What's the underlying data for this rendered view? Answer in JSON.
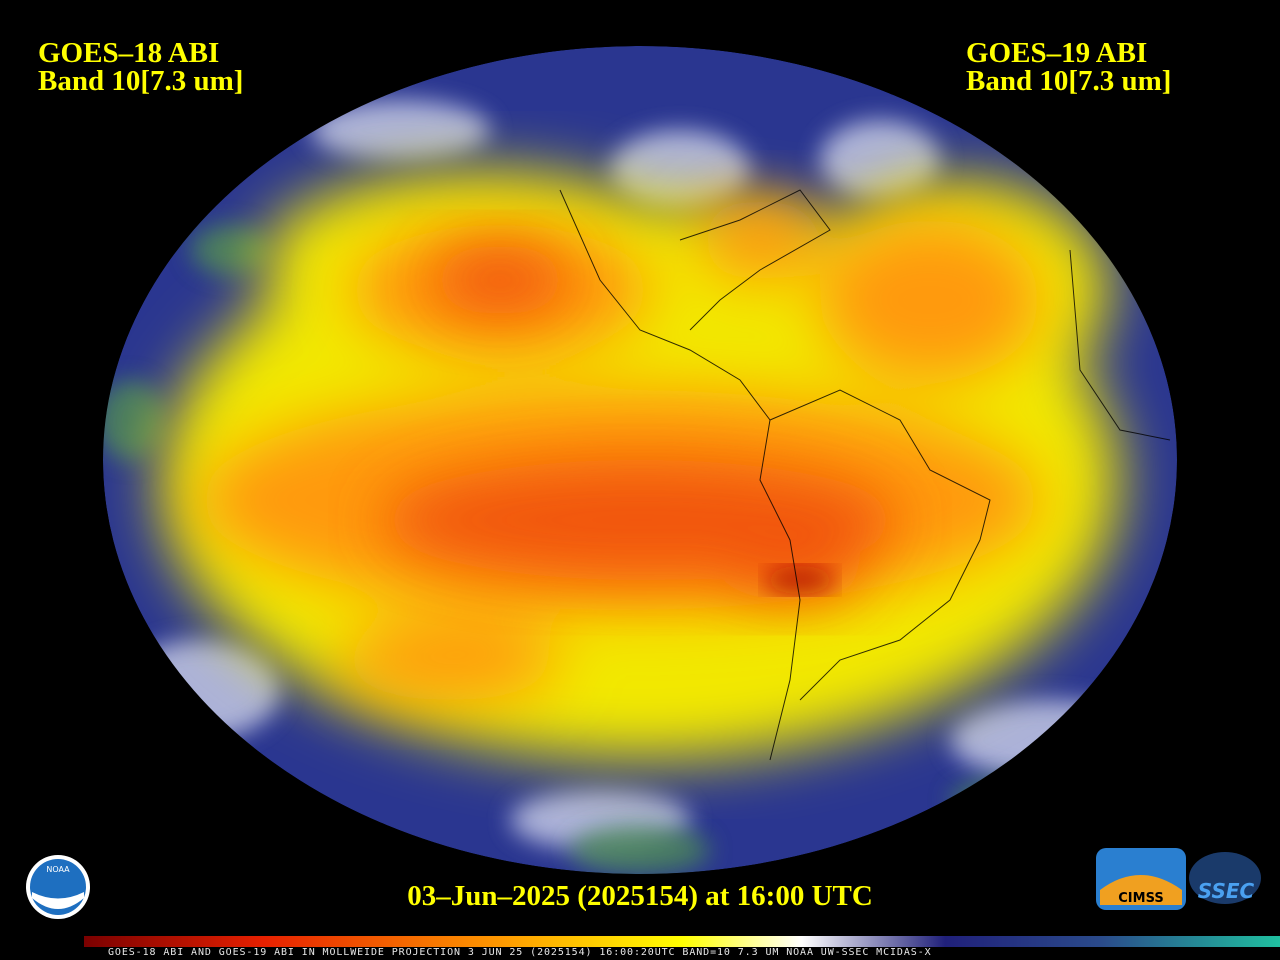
{
  "header": {
    "left": {
      "satellite": "GOES–18 ABI",
      "band": "Band 10[7.3 um]"
    },
    "right": {
      "satellite": "GOES–19 ABI",
      "band": "Band 10[7.3 um]"
    }
  },
  "timestamp": "03–Jun–2025 (2025154) at 16:00 UTC",
  "logos": {
    "noaa": "NOAA",
    "cimss": "CIMSS",
    "ssec": "SSEC"
  },
  "footer": "GOES-18 ABI AND GOES-19 ABI IN MOLLWEIDE PROJECTION 3 JUN 25 (2025154) 16:00:20UTC BAND=10 7.3 UM NOAA UW-SSEC MCIDAS-X"
}
